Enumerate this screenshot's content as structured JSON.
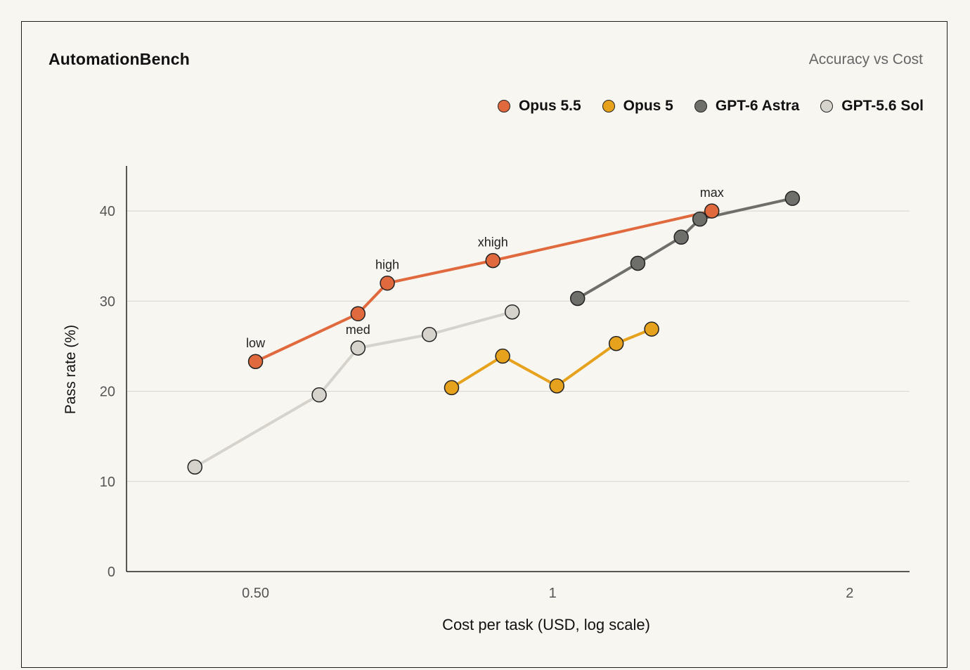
{
  "chart_data": {
    "type": "line",
    "title": "AutomationBench",
    "subtitle": "Accuracy vs Cost",
    "xlabel": "Cost per task (USD, log scale)",
    "ylabel": "Pass rate (%)",
    "xscale": "log",
    "xlim": [
      0.37,
      2.3
    ],
    "ylim": [
      0,
      45
    ],
    "xticks": [
      0.5,
      1,
      2
    ],
    "xtick_labels": [
      "0.50",
      "1",
      "2"
    ],
    "yticks": [
      0,
      10,
      20,
      30,
      40
    ],
    "ytick_labels": [
      "0",
      "10",
      "20",
      "30",
      "40"
    ],
    "grid": "horizontal",
    "legend_position": "top-right",
    "series": [
      {
        "name": "Opus 5.5",
        "color": "#e0693e",
        "points": [
          {
            "x": 0.5,
            "y": 23.3,
            "label": "low"
          },
          {
            "x": 0.635,
            "y": 28.6,
            "label": ""
          },
          {
            "x": 0.68,
            "y": 32.0,
            "label": "high"
          },
          {
            "x": 0.87,
            "y": 34.5,
            "label": "xhigh"
          },
          {
            "x": 1.45,
            "y": 40.0,
            "label": "max"
          }
        ]
      },
      {
        "name": "Opus 5",
        "color": "#e6a21c",
        "points": [
          {
            "x": 0.79,
            "y": 20.4
          },
          {
            "x": 0.89,
            "y": 23.9
          },
          {
            "x": 1.01,
            "y": 20.6
          },
          {
            "x": 1.16,
            "y": 25.3
          },
          {
            "x": 1.26,
            "y": 26.9
          }
        ]
      },
      {
        "name": "GPT-6 Astra",
        "color": "#6e6e6a",
        "points": [
          {
            "x": 1.06,
            "y": 30.3
          },
          {
            "x": 1.22,
            "y": 34.2
          },
          {
            "x": 1.35,
            "y": 37.1
          },
          {
            "x": 1.41,
            "y": 39.1
          },
          {
            "x": 1.75,
            "y": 41.4
          }
        ]
      },
      {
        "name": "GPT-5.6 Sol",
        "color": "#d5d3cc",
        "points": [
          {
            "x": 0.434,
            "y": 11.6
          },
          {
            "x": 0.58,
            "y": 19.6
          },
          {
            "x": 0.635,
            "y": 24.8,
            "label": "med"
          },
          {
            "x": 0.75,
            "y": 26.3
          },
          {
            "x": 0.91,
            "y": 28.8
          }
        ]
      }
    ]
  }
}
